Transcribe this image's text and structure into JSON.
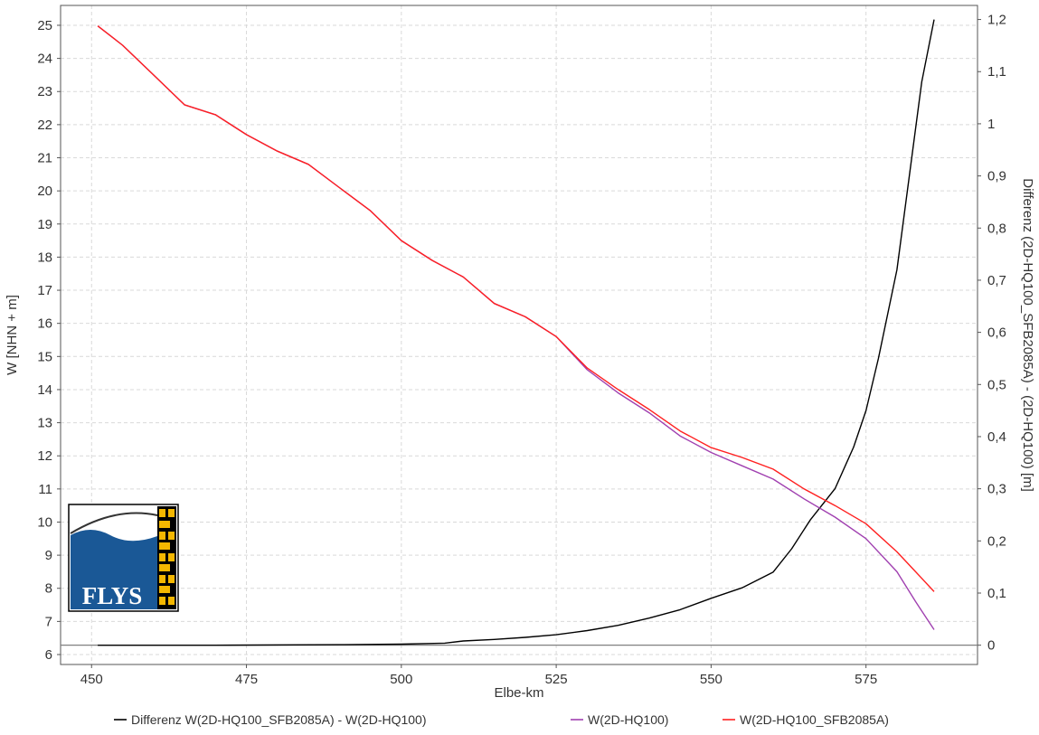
{
  "chart_data": {
    "type": "line",
    "xlabel": "Elbe-km",
    "ylabel": "W [NHN + m]",
    "y2label": "Differenz (2D-HQ100_SFB2085A) - (2D-HQ100) [m]",
    "xlim": [
      445,
      593
    ],
    "ylim": [
      5.7,
      25.6
    ],
    "y2lim": [
      -0.037,
      1.227
    ],
    "x_ticks": [
      450,
      475,
      500,
      525,
      550,
      575
    ],
    "y_ticks": [
      6,
      7,
      8,
      9,
      10,
      11,
      12,
      13,
      14,
      15,
      16,
      17,
      18,
      19,
      20,
      21,
      22,
      23,
      24,
      25
    ],
    "y2_ticks": [
      0,
      0.1,
      0.2,
      0.3,
      0.4,
      0.5,
      0.6,
      0.7,
      0.8,
      0.9,
      1,
      1.1,
      1.2
    ],
    "y2_tick_labels": [
      "0",
      "0,1",
      "0,2",
      "0,3",
      "0,4",
      "0,5",
      "0,6",
      "0,7",
      "0,8",
      "0,9",
      "1",
      "1,1",
      "1,2"
    ],
    "grid": true,
    "legend_position": "bottom",
    "series": [
      {
        "name": "Differenz W(2D-HQ100_SFB2085A) - W(2D-HQ100)",
        "color": "#000000",
        "axis": "right",
        "x": [
          451,
          470,
          490,
          500,
          507,
          510,
          515,
          520,
          525,
          530,
          535,
          540,
          545,
          550,
          555,
          560,
          563,
          566,
          570,
          573,
          575,
          577,
          580,
          582,
          584,
          586
        ],
        "y": [
          0,
          0,
          0.001,
          0.002,
          0.004,
          0.008,
          0.011,
          0.015,
          0.02,
          0.028,
          0.038,
          0.052,
          0.068,
          0.09,
          0.11,
          0.14,
          0.185,
          0.24,
          0.3,
          0.38,
          0.45,
          0.55,
          0.72,
          0.9,
          1.08,
          1.2
        ]
      },
      {
        "name": "W(2D-HQ100)",
        "color": "#a040b0",
        "axis": "left",
        "x": [
          451,
          455,
          460,
          465,
          470,
          475,
          480,
          485,
          490,
          495,
          500,
          505,
          510,
          515,
          520,
          525,
          530,
          535,
          540,
          545,
          550,
          555,
          560,
          565,
          570,
          575,
          580,
          583,
          586
        ],
        "y": [
          24.98,
          24.4,
          23.5,
          22.6,
          22.3,
          21.7,
          21.2,
          20.8,
          20.1,
          19.4,
          18.5,
          17.9,
          17.4,
          16.6,
          16.2,
          15.6,
          14.6,
          13.9,
          13.3,
          12.6,
          12.1,
          11.7,
          11.3,
          10.7,
          10.15,
          9.5,
          8.5,
          7.6,
          6.75
        ]
      },
      {
        "name": "W(2D-HQ100_SFB2085A)",
        "color": "#ff2020",
        "axis": "left",
        "x": [
          451,
          455,
          460,
          465,
          470,
          475,
          480,
          485,
          490,
          495,
          500,
          505,
          510,
          515,
          520,
          525,
          530,
          535,
          540,
          545,
          550,
          555,
          560,
          565,
          570,
          575,
          580,
          583,
          586
        ],
        "y": [
          24.98,
          24.4,
          23.5,
          22.6,
          22.3,
          21.7,
          21.2,
          20.8,
          20.1,
          19.4,
          18.5,
          17.9,
          17.4,
          16.6,
          16.2,
          15.6,
          14.65,
          14.0,
          13.4,
          12.75,
          12.25,
          11.95,
          11.6,
          11.0,
          10.5,
          9.95,
          9.1,
          8.5,
          7.9
        ]
      }
    ]
  },
  "logo": {
    "text": "FLYS"
  }
}
